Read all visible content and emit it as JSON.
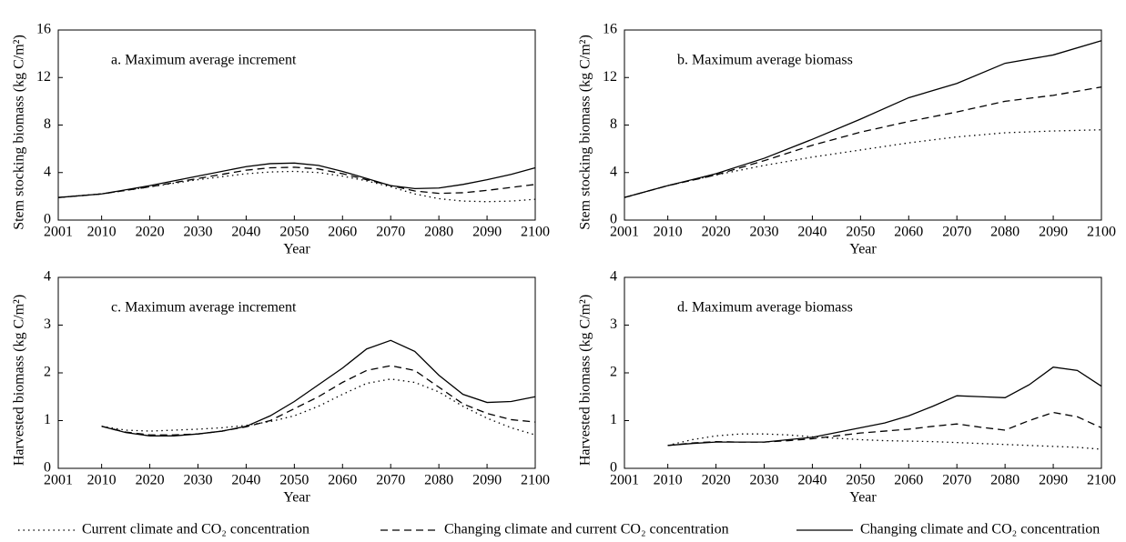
{
  "chart_data": [
    {
      "type": "line",
      "title": "a. Maximum average increment",
      "xlabel": "Year",
      "ylabel": "Stem stocking biomass (kg C/m²)",
      "x": [
        2001,
        2010,
        2020,
        2030,
        2040,
        2045,
        2050,
        2055,
        2060,
        2065,
        2070,
        2075,
        2080,
        2085,
        2090,
        2095,
        2100
      ],
      "xlim": [
        2001,
        2100
      ],
      "xticks": [
        2001,
        2010,
        2020,
        2030,
        2040,
        2050,
        2060,
        2070,
        2080,
        2090,
        2100
      ],
      "ylim": [
        0,
        16
      ],
      "yticks": [
        0,
        4,
        8,
        12,
        16
      ],
      "series": [
        {
          "style": "dotted",
          "values": [
            1.9,
            2.2,
            2.8,
            3.4,
            3.9,
            4.05,
            4.1,
            4.0,
            3.7,
            3.3,
            2.8,
            2.2,
            1.8,
            1.6,
            1.55,
            1.6,
            1.75
          ]
        },
        {
          "style": "dashed",
          "values": [
            1.9,
            2.2,
            2.8,
            3.5,
            4.2,
            4.4,
            4.45,
            4.3,
            3.9,
            3.4,
            2.9,
            2.45,
            2.25,
            2.3,
            2.5,
            2.75,
            3.0
          ]
        },
        {
          "style": "solid",
          "values": [
            1.9,
            2.2,
            2.9,
            3.7,
            4.5,
            4.75,
            4.8,
            4.6,
            4.1,
            3.5,
            2.9,
            2.65,
            2.7,
            3.0,
            3.4,
            3.85,
            4.4
          ]
        }
      ]
    },
    {
      "type": "line",
      "title": "b. Maximum average biomass",
      "xlabel": "Year",
      "ylabel": "Stem stocking biomass (kg C/m²)",
      "x": [
        2001,
        2010,
        2020,
        2030,
        2040,
        2050,
        2060,
        2070,
        2080,
        2090,
        2100
      ],
      "xlim": [
        2001,
        2100
      ],
      "xticks": [
        2001,
        2010,
        2020,
        2030,
        2040,
        2050,
        2060,
        2070,
        2080,
        2090,
        2100
      ],
      "ylim": [
        0,
        16
      ],
      "yticks": [
        0,
        4,
        8,
        12,
        16
      ],
      "series": [
        {
          "style": "dotted",
          "values": [
            1.9,
            2.9,
            3.8,
            4.6,
            5.3,
            5.9,
            6.5,
            7.0,
            7.35,
            7.5,
            7.6
          ]
        },
        {
          "style": "dashed",
          "values": [
            1.9,
            2.9,
            3.8,
            5.0,
            6.3,
            7.4,
            8.3,
            9.1,
            10.0,
            10.5,
            11.2
          ]
        },
        {
          "style": "solid",
          "values": [
            1.9,
            2.9,
            3.9,
            5.2,
            6.8,
            8.5,
            10.3,
            11.5,
            13.2,
            13.9,
            15.1
          ]
        }
      ]
    },
    {
      "type": "line",
      "title": "c. Maximum average increment",
      "xlabel": "Year",
      "ylabel": "Harvested biomass (kg C/m²)",
      "x": [
        2010,
        2015,
        2020,
        2025,
        2030,
        2035,
        2040,
        2045,
        2050,
        2055,
        2060,
        2065,
        2070,
        2075,
        2080,
        2085,
        2090,
        2095,
        2100
      ],
      "xlim": [
        2001,
        2100
      ],
      "xticks": [
        2001,
        2010,
        2020,
        2030,
        2040,
        2050,
        2060,
        2070,
        2080,
        2090,
        2100
      ],
      "ylim": [
        0,
        4
      ],
      "yticks": [
        0,
        1,
        2,
        3,
        4
      ],
      "series": [
        {
          "style": "dotted",
          "values": [
            0.88,
            0.8,
            0.78,
            0.8,
            0.82,
            0.85,
            0.9,
            0.98,
            1.1,
            1.3,
            1.55,
            1.78,
            1.87,
            1.8,
            1.6,
            1.3,
            1.05,
            0.85,
            0.7
          ]
        },
        {
          "style": "dashed",
          "values": [
            0.88,
            0.76,
            0.7,
            0.7,
            0.72,
            0.78,
            0.87,
            1.0,
            1.25,
            1.5,
            1.8,
            2.05,
            2.15,
            2.05,
            1.7,
            1.35,
            1.15,
            1.02,
            0.97
          ]
        },
        {
          "style": "solid",
          "values": [
            0.88,
            0.75,
            0.68,
            0.68,
            0.72,
            0.78,
            0.88,
            1.1,
            1.4,
            1.75,
            2.1,
            2.5,
            2.68,
            2.45,
            1.95,
            1.55,
            1.38,
            1.4,
            1.5
          ]
        }
      ]
    },
    {
      "type": "line",
      "title": "d. Maximum average biomass",
      "xlabel": "Year",
      "ylabel": "Harvested biomass (kg C/m²)",
      "x": [
        2010,
        2015,
        2020,
        2025,
        2030,
        2035,
        2040,
        2045,
        2050,
        2055,
        2060,
        2065,
        2070,
        2075,
        2080,
        2085,
        2090,
        2095,
        2100
      ],
      "xlim": [
        2001,
        2100
      ],
      "xticks": [
        2001,
        2010,
        2020,
        2030,
        2040,
        2050,
        2060,
        2070,
        2080,
        2090,
        2100
      ],
      "ylim": [
        0,
        4
      ],
      "yticks": [
        0,
        1,
        2,
        3,
        4
      ],
      "series": [
        {
          "style": "dotted",
          "values": [
            0.48,
            0.6,
            0.68,
            0.72,
            0.72,
            0.7,
            0.66,
            0.63,
            0.6,
            0.58,
            0.57,
            0.56,
            0.54,
            0.52,
            0.5,
            0.48,
            0.46,
            0.44,
            0.4
          ]
        },
        {
          "style": "dashed",
          "values": [
            0.48,
            0.53,
            0.56,
            0.55,
            0.55,
            0.58,
            0.62,
            0.68,
            0.74,
            0.78,
            0.82,
            0.88,
            0.93,
            0.86,
            0.8,
            1.0,
            1.17,
            1.08,
            0.85
          ]
        },
        {
          "style": "solid",
          "values": [
            0.48,
            0.52,
            0.55,
            0.55,
            0.55,
            0.6,
            0.65,
            0.75,
            0.85,
            0.95,
            1.1,
            1.3,
            1.52,
            1.5,
            1.48,
            1.75,
            2.12,
            2.05,
            1.72
          ]
        }
      ]
    }
  ],
  "legend": [
    {
      "name": "Current climate and CO₂ concentration",
      "style": "dotted"
    },
    {
      "name": "Changing climate and current CO₂ concentration",
      "style": "dashed"
    },
    {
      "name": "Changing climate and CO₂ concentration",
      "style": "solid"
    }
  ]
}
